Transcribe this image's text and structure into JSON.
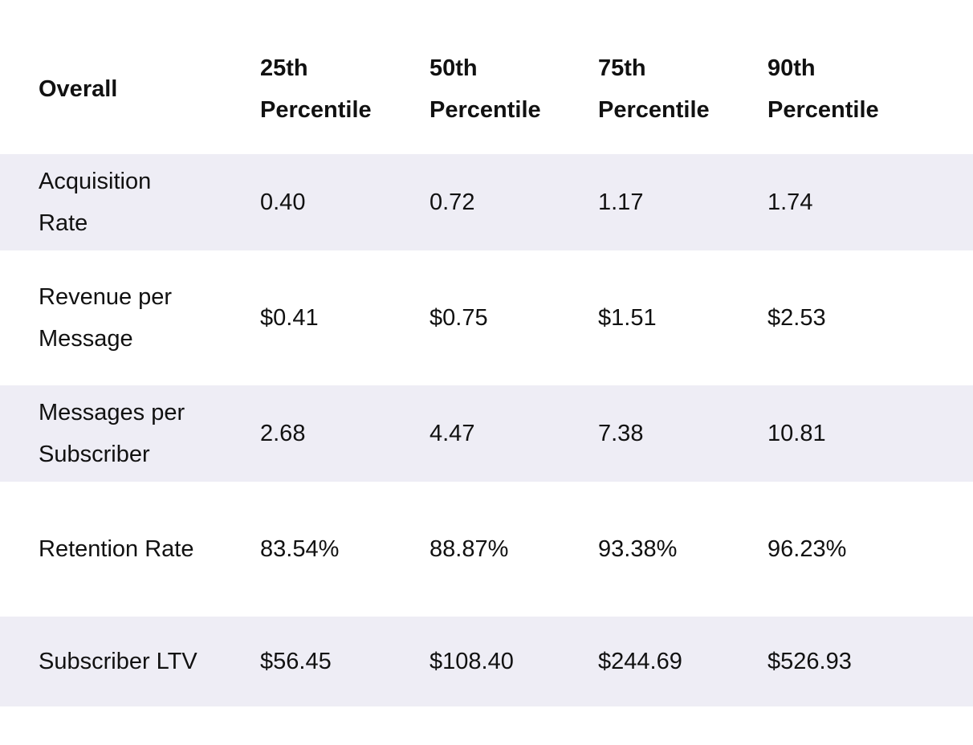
{
  "table": {
    "header": [
      "Overall",
      "25th Percentile",
      "50th Percentile",
      "75th Percentile",
      "90th Percentile"
    ],
    "rows": [
      [
        "Acquisition Rate",
        "0.40",
        "0.72",
        "1.17",
        "1.74"
      ],
      [
        "Revenue per Message",
        "$0.41",
        "$0.75",
        "$1.51",
        "$2.53"
      ],
      [
        "Messages per Subscriber",
        "2.68",
        "4.47",
        "7.38",
        "10.81"
      ],
      [
        "Retention Rate",
        "83.54%",
        "88.87%",
        "93.38%",
        "96.23%"
      ],
      [
        "Subscriber LTV",
        "$56.45",
        "$108.40",
        "$244.69",
        "$526.93"
      ]
    ]
  }
}
